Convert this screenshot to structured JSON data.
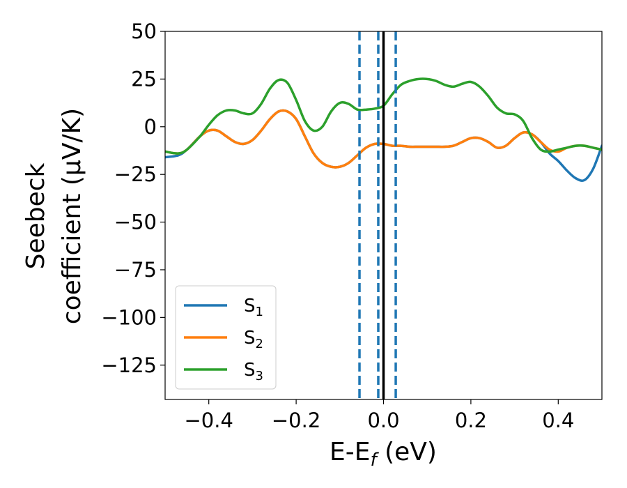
{
  "chart_data": {
    "type": "line",
    "title": "",
    "xlabel": "E-E",
    "xlabel_sub": "f",
    "xlabel_unit": " (eV)",
    "ylabel_line1": "Seebeck",
    "ylabel_line2": "coefficient  (μV/K)",
    "xlim": [
      -0.5,
      0.5
    ],
    "ylim": [
      -143,
      50
    ],
    "xticks": [
      -0.4,
      -0.2,
      0.0,
      0.2,
      0.4
    ],
    "xtick_labels": [
      "−0.4",
      "−0.2",
      "0.0",
      "0.2",
      "0.4"
    ],
    "yticks": [
      50,
      25,
      0,
      -25,
      -50,
      -75,
      -100,
      -125
    ],
    "ytick_labels": [
      "50",
      "25",
      "0",
      "−25",
      "−50",
      "−75",
      "−100",
      "−125"
    ],
    "grid": false,
    "legend_position": "lower-left",
    "vertical_lines": [
      {
        "x": -0.055,
        "style": "dashed",
        "color": "#1f77b4"
      },
      {
        "x": -0.012,
        "style": "dashed",
        "color": "#1f77b4"
      },
      {
        "x": 0.0,
        "style": "solid",
        "color": "#000000"
      },
      {
        "x": 0.028,
        "style": "dashed",
        "color": "#1f77b4"
      }
    ],
    "series": [
      {
        "name": "S",
        "name_sub": "1",
        "color": "#1f77b4",
        "x": [
          -0.5,
          -0.47,
          -0.45,
          -0.42,
          -0.4,
          -0.38,
          -0.36,
          -0.34,
          -0.32,
          -0.3,
          -0.28,
          -0.26,
          -0.24,
          -0.22,
          -0.2,
          -0.18,
          -0.16,
          -0.14,
          -0.12,
          -0.1,
          -0.08,
          -0.06,
          -0.04,
          -0.02,
          0.0,
          0.02,
          0.04,
          0.06,
          0.08,
          0.1,
          0.12,
          0.14,
          0.16,
          0.18,
          0.2,
          0.22,
          0.24,
          0.26,
          0.28,
          0.3,
          0.32,
          0.34,
          0.36,
          0.38,
          0.4,
          0.42,
          0.44,
          0.46,
          0.48,
          0.5
        ],
        "values": [
          -16,
          -15,
          -12,
          -5,
          -2,
          -2,
          -5,
          -8,
          -9,
          -7,
          -2,
          4,
          8,
          8,
          4,
          -5,
          -14,
          -19,
          -21,
          -21,
          -19,
          -15,
          -11,
          -9,
          -9,
          -10,
          -10,
          -10.5,
          -10.5,
          -10.5,
          -10.5,
          -10.5,
          -10,
          -8,
          -6,
          -6,
          -8,
          -11,
          -10,
          -6,
          -3,
          -4,
          -8,
          -14,
          -18,
          -23,
          -27,
          -28,
          -22,
          -10
        ]
      },
      {
        "name": "S",
        "name_sub": "2",
        "color": "#ff7f0e",
        "x": [
          -0.5,
          -0.47,
          -0.45,
          -0.42,
          -0.4,
          -0.38,
          -0.36,
          -0.34,
          -0.32,
          -0.3,
          -0.28,
          -0.26,
          -0.24,
          -0.22,
          -0.2,
          -0.18,
          -0.16,
          -0.14,
          -0.12,
          -0.1,
          -0.08,
          -0.06,
          -0.04,
          -0.02,
          0.0,
          0.02,
          0.04,
          0.06,
          0.08,
          0.1,
          0.12,
          0.14,
          0.16,
          0.18,
          0.2,
          0.22,
          0.24,
          0.26,
          0.28,
          0.3,
          0.32,
          0.34,
          0.36,
          0.38,
          0.4,
          0.42,
          0.44,
          0.46,
          0.48,
          0.5
        ],
        "values": [
          -13,
          -14,
          -12,
          -5,
          -2,
          -2,
          -5,
          -8,
          -9,
          -7,
          -2,
          4,
          8,
          8,
          4,
          -5,
          -14,
          -19,
          -21,
          -21,
          -19,
          -15,
          -11,
          -9,
          -9,
          -10,
          -10,
          -10.5,
          -10.5,
          -10.5,
          -10.5,
          -10.5,
          -10,
          -8,
          -6,
          -6,
          -8,
          -11,
          -10,
          -6,
          -3,
          -4,
          -8,
          -12,
          -13,
          -11,
          -10,
          -10,
          -11,
          -12
        ]
      },
      {
        "name": "S",
        "name_sub": "3",
        "color": "#2ca02c",
        "x": [
          -0.5,
          -0.47,
          -0.45,
          -0.42,
          -0.4,
          -0.38,
          -0.36,
          -0.34,
          -0.32,
          -0.3,
          -0.28,
          -0.26,
          -0.24,
          -0.22,
          -0.2,
          -0.18,
          -0.16,
          -0.14,
          -0.12,
          -0.1,
          -0.08,
          -0.06,
          -0.04,
          -0.02,
          0.0,
          0.02,
          0.04,
          0.06,
          0.08,
          0.1,
          0.12,
          0.14,
          0.16,
          0.18,
          0.2,
          0.22,
          0.24,
          0.26,
          0.28,
          0.3,
          0.32,
          0.34,
          0.36,
          0.38,
          0.4,
          0.42,
          0.44,
          0.46,
          0.48,
          0.5
        ],
        "values": [
          -13,
          -14,
          -12,
          -5,
          1,
          6,
          8.5,
          8.5,
          7,
          7,
          12,
          20,
          24.5,
          23,
          14,
          3,
          -2,
          0,
          8,
          12.5,
          12,
          9,
          9,
          9.5,
          11,
          17,
          22,
          24,
          25,
          25,
          24,
          22,
          21,
          22.5,
          23.5,
          21,
          16,
          10,
          7,
          6.5,
          3,
          -6,
          -12,
          -13,
          -12,
          -11,
          -10,
          -10,
          -11,
          -12
        ]
      }
    ]
  }
}
